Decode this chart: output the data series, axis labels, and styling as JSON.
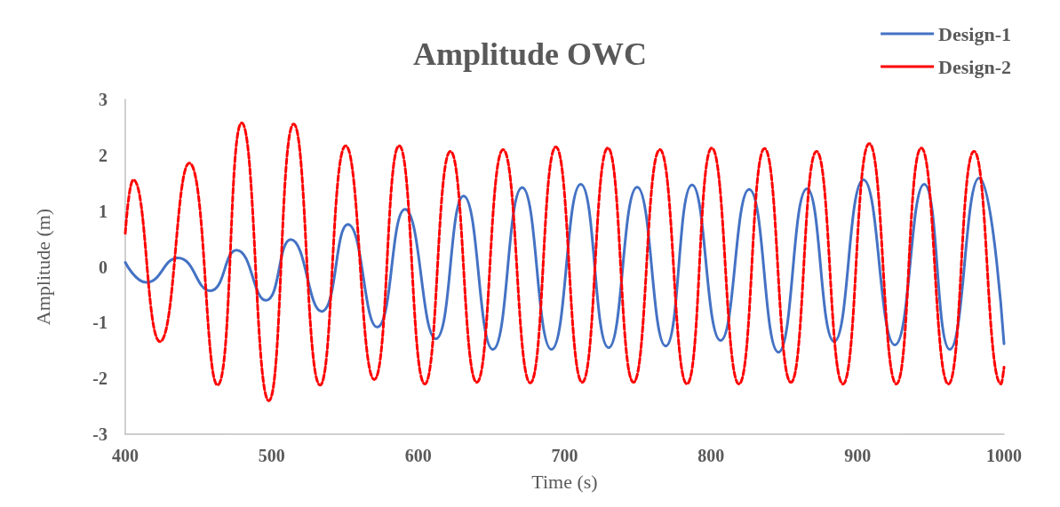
{
  "chart_data": {
    "type": "line",
    "title": "Amplitude OWC",
    "xlabel": "Time (s)",
    "ylabel": "Amplitude (m)",
    "xlim": [
      400,
      1000
    ],
    "xticks": [
      400,
      500,
      600,
      700,
      800,
      900,
      1000
    ],
    "ylim": [
      -3,
      3
    ],
    "yticks": [
      -3,
      -2,
      -1,
      0,
      1,
      2,
      3
    ],
    "grid": false,
    "legend": "top right",
    "marker": "none",
    "series": [
      {
        "name": "Design-1",
        "color": "#4472c4",
        "line_style": "solid",
        "x": [
          400,
          414.5,
          436,
          458,
          476,
          496,
          513,
          534,
          552,
          572,
          591,
          612,
          631,
          651,
          671,
          691,
          711,
          730,
          749.5,
          769,
          787,
          806.5,
          826,
          846,
          865.5,
          884,
          904,
          925.5,
          945.5,
          963,
          983,
          1000
        ],
        "values": [
          0.08,
          -0.28,
          0.16,
          -0.43,
          0.3,
          -0.6,
          0.49,
          -0.8,
          0.76,
          -1.08,
          1.03,
          -1.29,
          1.27,
          -1.48,
          1.42,
          -1.48,
          1.48,
          -1.45,
          1.43,
          -1.42,
          1.47,
          -1.32,
          1.39,
          -1.53,
          1.4,
          -1.34,
          1.56,
          -1.4,
          1.48,
          -1.48,
          1.59,
          -1.38
        ]
      },
      {
        "name": "Design-2",
        "color": "#ff0000",
        "line_style": "dashed",
        "x": [
          400,
          405.5,
          423.7,
          443.7,
          463,
          479.5,
          498,
          515,
          533,
          550.5,
          570,
          587,
          604.5,
          622,
          640,
          658,
          676.5,
          694,
          712,
          729.5,
          747,
          765,
          783.5,
          800.5,
          819,
          836.5,
          854.5,
          872,
          890,
          908,
          926.5,
          943.5,
          962,
          979.5,
          998,
          1000
        ],
        "values": [
          0.6,
          1.56,
          -1.34,
          1.86,
          -2.12,
          2.58,
          -2.4,
          2.56,
          -2.12,
          2.17,
          -2.02,
          2.17,
          -2.1,
          2.07,
          -2.07,
          2.1,
          -2.08,
          2.15,
          -2.07,
          2.13,
          -2.07,
          2.1,
          -2.1,
          2.13,
          -2.1,
          2.12,
          -2.07,
          2.07,
          -2.1,
          2.21,
          -2.1,
          2.13,
          -2.1,
          2.07,
          -2.1,
          -1.8
        ]
      }
    ]
  }
}
